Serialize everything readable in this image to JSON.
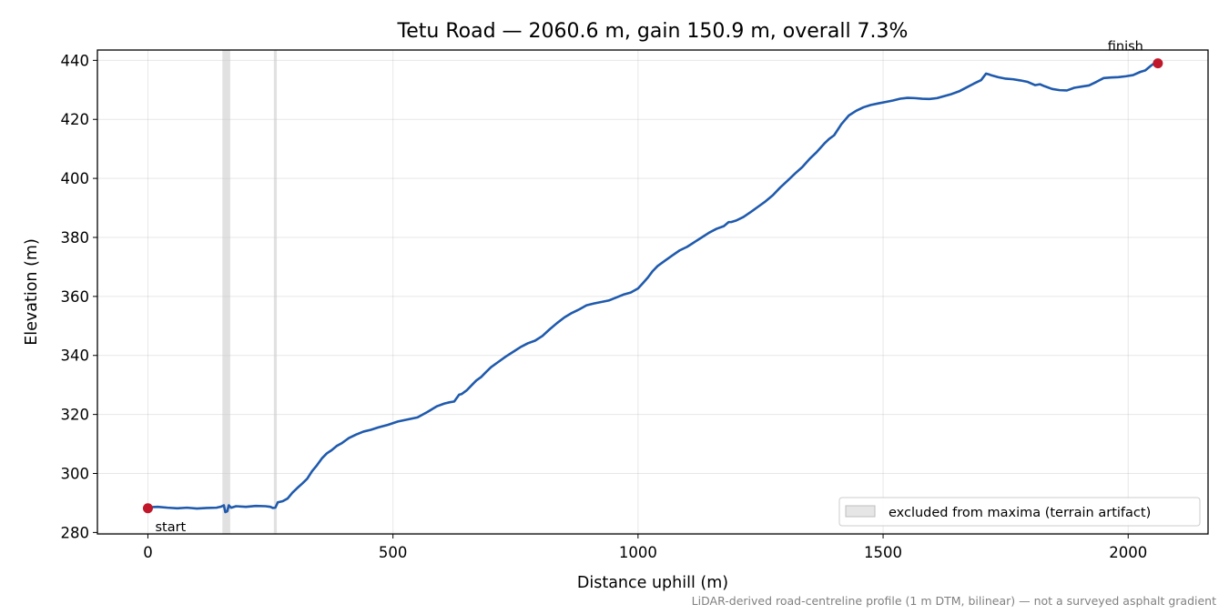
{
  "chart_data": {
    "type": "line",
    "title": "Tetu Road — 2060.6 m, gain 150.9 m, overall 7.3%",
    "xlabel": "Distance uphill (m)",
    "ylabel": "Elevation (m)",
    "xlim": [
      -103,
      2163
    ],
    "ylim": [
      279.5,
      443.5
    ],
    "xticks": [
      0,
      500,
      1000,
      1500,
      2000
    ],
    "xtick_labels": [
      "0",
      "500",
      "1000",
      "1500",
      "2000"
    ],
    "yticks": [
      280,
      300,
      320,
      340,
      360,
      380,
      400,
      420,
      440
    ],
    "ytick_labels": [
      "280",
      "300",
      "320",
      "340",
      "360",
      "380",
      "400",
      "420",
      "440"
    ],
    "grid": true,
    "line_color": "#1f5aad",
    "marker_color": "#c0182a",
    "excluded_color": "#c8c8c8",
    "excluded_ranges": [
      [
        152,
        168
      ],
      [
        257,
        263
      ]
    ],
    "profile": {
      "x": [
        0,
        10,
        20,
        40,
        60,
        80,
        100,
        120,
        140,
        150,
        155,
        158,
        162,
        165,
        170,
        180,
        200,
        220,
        240,
        250,
        255,
        260,
        265,
        275,
        285,
        295,
        305,
        315,
        325,
        335,
        345,
        355,
        365,
        375,
        385,
        395,
        410,
        425,
        440,
        455,
        470,
        490,
        510,
        530,
        550,
        570,
        590,
        605,
        615,
        625,
        635,
        640,
        650,
        660,
        670,
        680,
        690,
        700,
        715,
        730,
        745,
        760,
        775,
        790,
        805,
        820,
        835,
        850,
        865,
        880,
        895,
        910,
        925,
        940,
        955,
        970,
        985,
        1000,
        1010,
        1020,
        1030,
        1040,
        1055,
        1070,
        1085,
        1100,
        1115,
        1130,
        1145,
        1160,
        1175,
        1185,
        1190,
        1200,
        1215,
        1230,
        1245,
        1260,
        1275,
        1290,
        1305,
        1320,
        1335,
        1350,
        1365,
        1380,
        1390,
        1400,
        1415,
        1430,
        1445,
        1460,
        1475,
        1490,
        1505,
        1520,
        1535,
        1550,
        1565,
        1580,
        1595,
        1610,
        1625,
        1640,
        1655,
        1670,
        1685,
        1700,
        1710,
        1715,
        1720,
        1735,
        1750,
        1765,
        1780,
        1795,
        1810,
        1820,
        1830,
        1845,
        1860,
        1875,
        1890,
        1905,
        1920,
        1935,
        1950,
        1965,
        1980,
        1995,
        2010,
        2025,
        2035,
        2045,
        2055,
        2060.6
      ],
      "y": [
        288.2,
        288.6,
        288.7,
        288.4,
        288.2,
        288.4,
        288.1,
        288.3,
        288.4,
        288.8,
        289.2,
        286.9,
        287.2,
        289.2,
        288.4,
        288.9,
        288.7,
        289.0,
        288.9,
        288.7,
        288.3,
        288.4,
        290.2,
        290.6,
        291.5,
        293.5,
        295.1,
        296.6,
        298.2,
        300.8,
        302.8,
        305.1,
        306.8,
        307.9,
        309.3,
        310.2,
        312.0,
        313.2,
        314.2,
        314.8,
        315.6,
        316.5,
        317.6,
        318.3,
        319.0,
        320.8,
        322.8,
        323.7,
        324.1,
        324.4,
        326.7,
        326.9,
        328.1,
        329.8,
        331.5,
        332.7,
        334.4,
        336.0,
        337.8,
        339.6,
        341.2,
        342.8,
        344.1,
        345.0,
        346.6,
        348.9,
        351.0,
        352.9,
        354.4,
        355.6,
        357.0,
        357.6,
        358.1,
        358.6,
        359.6,
        360.6,
        361.3,
        362.7,
        364.5,
        366.4,
        368.6,
        370.3,
        372.1,
        373.9,
        375.6,
        376.8,
        378.4,
        380.0,
        381.6,
        382.9,
        383.8,
        385.2,
        385.2,
        385.7,
        386.9,
        388.6,
        390.4,
        392.2,
        394.3,
        396.9,
        399.2,
        401.6,
        403.8,
        406.6,
        409.0,
        411.8,
        413.4,
        414.6,
        418.4,
        421.3,
        422.9,
        424.1,
        424.9,
        425.4,
        425.9,
        426.4,
        427.0,
        427.3,
        427.2,
        427.0,
        426.9,
        427.2,
        427.9,
        428.6,
        429.5,
        430.8,
        432.1,
        433.3,
        435.5,
        435.3,
        435.0,
        434.3,
        433.8,
        433.6,
        433.2,
        432.7,
        431.6,
        431.9,
        431.2,
        430.3,
        429.9,
        429.8,
        430.7,
        431.1,
        431.5,
        432.7,
        434.0,
        434.2,
        434.3,
        434.6,
        435.0,
        436.1,
        436.6,
        438.0,
        439.2,
        439.0
      ]
    },
    "markers": [
      {
        "label": "start",
        "x": 0,
        "y": 288.2
      },
      {
        "label": "finish",
        "x": 2060.6,
        "y": 439.0
      }
    ],
    "legend": {
      "entries": [
        "excluded from maxima (terrain artifact)"
      ],
      "placement": "lower right"
    },
    "footnote": "LiDAR-derived road-centreline profile (1 m DTM, bilinear) — not a surveyed asphalt gradient"
  }
}
